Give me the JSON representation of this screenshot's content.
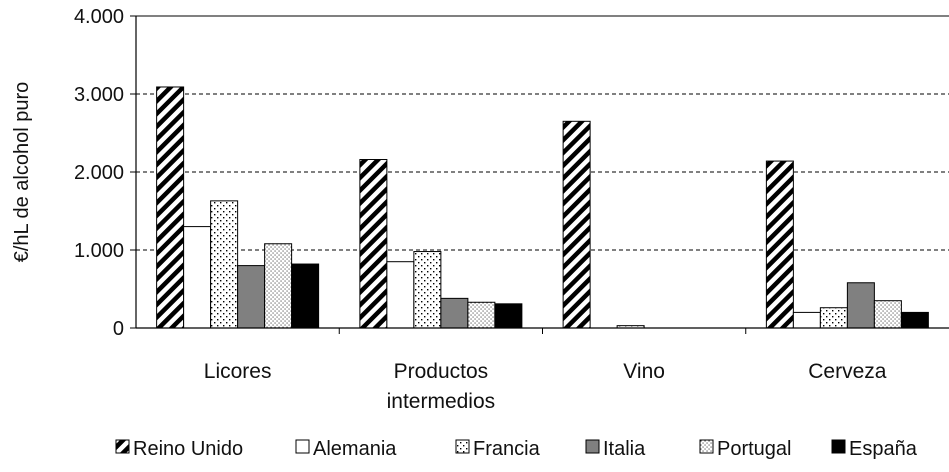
{
  "chart_data": {
    "type": "bar",
    "title": "",
    "xlabel": "",
    "ylabel": "€/hL de alcohol puro",
    "ylim": [
      0,
      4000
    ],
    "yticks": [
      0,
      1000,
      2000,
      3000,
      4000
    ],
    "ytick_labels": [
      "0",
      "1.000",
      "2.000",
      "3.000",
      "4.000"
    ],
    "grid": "horizontal dashed",
    "legend_position": "bottom",
    "categories": [
      [
        "Licores"
      ],
      [
        "Productos",
        "intermedios"
      ],
      [
        "Vino"
      ],
      [
        "Cerveza"
      ]
    ],
    "series": [
      {
        "name": "Reino Unido",
        "pattern": "diagonal-hatch",
        "color": "#000000",
        "values": [
          3090,
          2160,
          2650,
          2140
        ]
      },
      {
        "name": "Alemania",
        "pattern": "white",
        "color": "#ffffff",
        "values": [
          1300,
          850,
          0,
          200
        ]
      },
      {
        "name": "Francia",
        "pattern": "dots",
        "color": "#ffffff",
        "values": [
          1630,
          980,
          30,
          260
        ]
      },
      {
        "name": "Italia",
        "pattern": "gray",
        "color": "#808080",
        "values": [
          800,
          380,
          0,
          580
        ]
      },
      {
        "name": "Portugal",
        "pattern": "fine-dots",
        "color": "#ffffff",
        "values": [
          1080,
          330,
          0,
          350
        ]
      },
      {
        "name": "España",
        "pattern": "black",
        "color": "#000000",
        "values": [
          820,
          310,
          0,
          200
        ]
      }
    ]
  }
}
